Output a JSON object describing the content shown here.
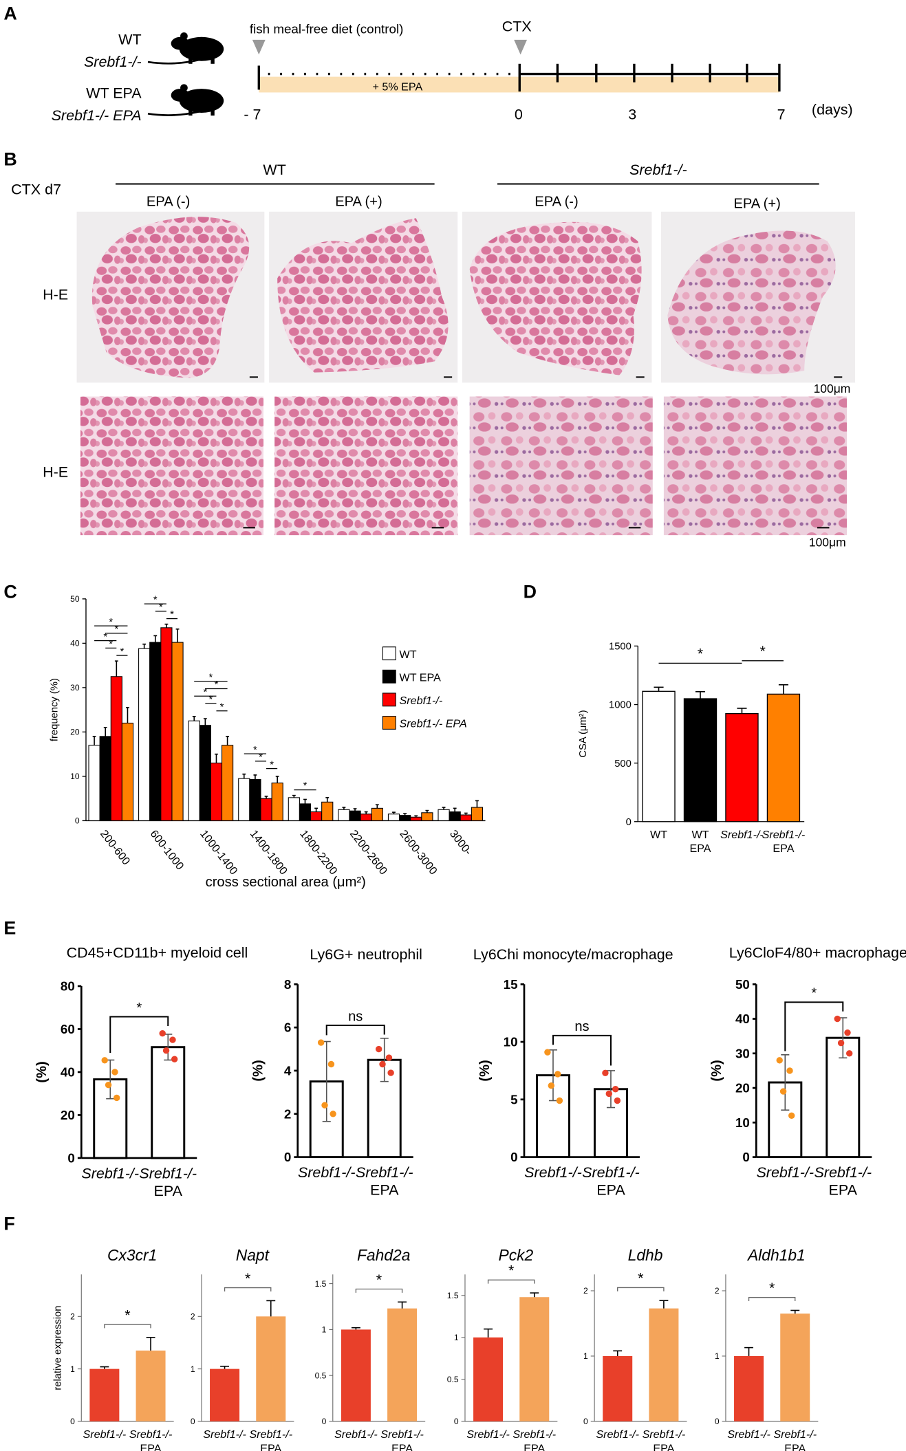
{
  "panel_labels": [
    "A",
    "B",
    "C",
    "D",
    "E",
    "F"
  ],
  "panel_a": {
    "groups": [
      "WT",
      "Srebf1-/-",
      "WT EPA",
      "Srebf1-/- EPA"
    ],
    "diet": "fish meal-free diet (control)",
    "injection": "CTX",
    "supplement": "+ 5% EPA",
    "days": [
      "- 7",
      "0",
      "3",
      "7"
    ],
    "unit": "(days)"
  },
  "panel_b": {
    "timepoint": "CTX d7",
    "genotypes": [
      "WT",
      "Srebf1-/-"
    ],
    "treatments": [
      "EPA (-)",
      "EPA (+)",
      "EPA (-)",
      "EPA (+)"
    ],
    "stain": [
      "H-E",
      "H-E"
    ],
    "scale_bars": [
      "100μm",
      "100μm"
    ]
  },
  "chart_data": [
    {
      "type": "bar",
      "ylabel": "frequency (%)",
      "xlabel": "cross sectional area (μm²)",
      "categories": [
        "200-600",
        "600-1000",
        "1000-1400",
        "1400-1800",
        "1800-2200",
        "2200-2600",
        "2600-3000",
        "3000-"
      ],
      "series": [
        {
          "name": "WT",
          "color": "#ffffff",
          "values": [
            17,
            38.8,
            22.5,
            9.5,
            5.2,
            2.5,
            1.5,
            2.5
          ],
          "errors": [
            2,
            1,
            1,
            1,
            0.5,
            0.5,
            0.4,
            0.5
          ]
        },
        {
          "name": "WT EPA",
          "color": "#000000",
          "values": [
            19,
            40.2,
            21.5,
            9.3,
            3.8,
            2.2,
            1.2,
            2.0
          ],
          "errors": [
            2,
            1.5,
            1.5,
            1,
            1,
            0.5,
            0.4,
            0.8
          ]
        },
        {
          "name": "Srebf1-/-",
          "color": "#ff0000",
          "values": [
            32.5,
            43.5,
            13,
            5,
            2,
            1.5,
            0.8,
            1.3
          ],
          "errors": [
            3.5,
            0.8,
            2,
            0.5,
            0.8,
            0.5,
            0.3,
            0.4
          ]
        },
        {
          "name": "Srebf1-/- EPA",
          "color": "#ff8000",
          "values": [
            22,
            40.2,
            17,
            8.5,
            4.2,
            2.8,
            1.8,
            3.0
          ],
          "errors": [
            3.5,
            3,
            2,
            1.5,
            1,
            0.8,
            0.5,
            1.5
          ]
        }
      ],
      "ylim": [
        0,
        50
      ],
      "yticks": [
        0,
        10,
        20,
        30,
        40,
        50
      ],
      "legend": "upper right",
      "significance": [
        {
          "category": 0,
          "pair": [
            0,
            3
          ],
          "label": "*"
        },
        {
          "category": 0,
          "pair": [
            1,
            3
          ],
          "label": "*"
        },
        {
          "category": 0,
          "pair": [
            0,
            2
          ],
          "label": "*"
        },
        {
          "category": 0,
          "pair": [
            1,
            2
          ],
          "label": "*"
        },
        {
          "category": 0,
          "pair": [
            2,
            3
          ],
          "label": "*"
        },
        {
          "category": 1,
          "pair": [
            0,
            2
          ],
          "label": "*"
        },
        {
          "category": 1,
          "pair": [
            1,
            2
          ],
          "label": "*"
        },
        {
          "category": 1,
          "pair": [
            2,
            3
          ],
          "label": "*"
        },
        {
          "category": 2,
          "pair": [
            0,
            3
          ],
          "label": "*"
        },
        {
          "category": 2,
          "pair": [
            1,
            3
          ],
          "label": "*"
        },
        {
          "category": 2,
          "pair": [
            0,
            2
          ],
          "label": "*"
        },
        {
          "category": 2,
          "pair": [
            1,
            2
          ],
          "label": "*"
        },
        {
          "category": 2,
          "pair": [
            2,
            3
          ],
          "label": "*"
        },
        {
          "category": 3,
          "pair": [
            0,
            2
          ],
          "label": "*"
        },
        {
          "category": 3,
          "pair": [
            1,
            2
          ],
          "label": "*"
        },
        {
          "category": 3,
          "pair": [
            2,
            3
          ],
          "label": "*"
        },
        {
          "category": 4,
          "pair": [
            0,
            2
          ],
          "label": "*"
        }
      ]
    },
    {
      "type": "bar",
      "ylabel": "CSA (μm²)",
      "categories": [
        [
          "WT"
        ],
        [
          "WT",
          "EPA"
        ],
        [
          "Srebf1-/-"
        ],
        [
          "Srebf1-/-",
          "EPA"
        ]
      ],
      "values": [
        1113,
        1050,
        923,
        1089
      ],
      "errors": [
        35,
        60,
        45,
        80
      ],
      "colors": [
        "#ffffff",
        "#000000",
        "#ff0000",
        "#ff8000"
      ],
      "ylim": [
        0,
        1500
      ],
      "yticks": [
        0,
        500,
        1000,
        1500
      ],
      "significance": [
        {
          "pair": [
            0,
            2
          ],
          "label": "*"
        },
        {
          "pair": [
            2,
            3
          ],
          "label": "*"
        }
      ]
    },
    {
      "type": "bar",
      "title": "CD45+CD11b+ myeloid cell",
      "ylabel": "(%)",
      "categories": [
        [
          "Srebf1-/-"
        ],
        [
          "Srebf1-/-",
          "EPA"
        ]
      ],
      "values": [
        36.6,
        51.6
      ],
      "errors": [
        9,
        6
      ],
      "points": [
        [
          45.5,
          40,
          34,
          28
        ],
        [
          58,
          55,
          50,
          46
        ]
      ],
      "color": "#ffffff",
      "point_colors": [
        "#f7941d",
        "#e8402a"
      ],
      "ylim": [
        0,
        80
      ],
      "yticks": [
        0,
        20,
        40,
        60,
        80
      ],
      "significance": [
        {
          "pair": [
            0,
            1
          ],
          "label": "*"
        }
      ]
    },
    {
      "type": "bar",
      "title": "Ly6G+ neutrophil",
      "ylabel": "(%)",
      "categories": [
        [
          "Srebf1-/-"
        ],
        [
          "Srebf1-/-",
          "EPA"
        ]
      ],
      "values": [
        3.5,
        4.5
      ],
      "errors": [
        1.85,
        1.0
      ],
      "points": [
        [
          5.3,
          4.3,
          2.4,
          2.0
        ],
        [
          5.0,
          4.6,
          4.3,
          3.9
        ]
      ],
      "color": "#ffffff",
      "point_colors": [
        "#f7941d",
        "#e8402a"
      ],
      "ylim": [
        0,
        8
      ],
      "yticks": [
        0,
        2,
        4,
        6,
        8
      ],
      "significance": [
        {
          "pair": [
            0,
            1
          ],
          "label": "ns"
        }
      ]
    },
    {
      "type": "bar",
      "title": "Ly6Chi monocyte/macrophage",
      "ylabel": "(%)",
      "categories": [
        [
          "Srebf1-/-"
        ],
        [
          "Srebf1-/-",
          "EPA"
        ]
      ],
      "values": [
        7.1,
        5.9
      ],
      "errors": [
        2.2,
        1.6
      ],
      "points": [
        [
          9.1,
          7.2,
          6.2,
          4.9
        ],
        [
          7.3,
          5.9,
          5.5,
          4.9
        ]
      ],
      "color": "#ffffff",
      "point_colors": [
        "#f7941d",
        "#e8402a"
      ],
      "ylim": [
        0,
        15
      ],
      "yticks": [
        0,
        5,
        10,
        15
      ],
      "significance": [
        {
          "pair": [
            0,
            1
          ],
          "label": "ns"
        }
      ]
    },
    {
      "type": "bar",
      "title": "Ly6CloF4/80+ macrophage",
      "ylabel": "(%)",
      "categories": [
        [
          "Srebf1-/-"
        ],
        [
          "Srebf1-/-",
          "EPA"
        ]
      ],
      "values": [
        21.6,
        34.5
      ],
      "errors": [
        8,
        5.8
      ],
      "points": [
        [
          28,
          25,
          19,
          12
        ],
        [
          40,
          36,
          33,
          30
        ]
      ],
      "color": "#ffffff",
      "point_colors": [
        "#f7941d",
        "#e8402a"
      ],
      "ylim": [
        0,
        50
      ],
      "yticks": [
        0,
        10,
        20,
        30,
        40,
        50
      ],
      "significance": [
        {
          "pair": [
            0,
            1
          ],
          "label": "*"
        }
      ]
    },
    {
      "type": "bar",
      "title": "Cx3cr1",
      "ylabel": "relative expression",
      "categories": [
        [
          "Srebf1-/-"
        ],
        [
          "Srebf1-/-",
          "EPA"
        ]
      ],
      "values": [
        1.0,
        1.35
      ],
      "errors": [
        0.04,
        0.25
      ],
      "colors": [
        "#e8402a",
        "#f4a45a"
      ],
      "ylim": [
        0,
        2.8
      ],
      "yticks": [
        0,
        1,
        2
      ],
      "significance": [
        {
          "pair": [
            0,
            1
          ],
          "label": "*"
        }
      ]
    },
    {
      "type": "bar",
      "title": "Napt",
      "categories": [
        [
          "Srebf1-/-"
        ],
        [
          "Srebf1-/-",
          "EPA"
        ]
      ],
      "values": [
        1.0,
        2.0
      ],
      "errors": [
        0.05,
        0.3
      ],
      "colors": [
        "#e8402a",
        "#f4a45a"
      ],
      "ylim": [
        0,
        2.8
      ],
      "yticks": [
        0,
        1,
        2
      ],
      "significance": [
        {
          "pair": [
            0,
            1
          ],
          "label": "*"
        }
      ]
    },
    {
      "type": "bar",
      "title": "Fahd2a",
      "categories": [
        [
          "Srebf1-/-"
        ],
        [
          "Srebf1-/-",
          "EPA"
        ]
      ],
      "values": [
        1.0,
        1.23
      ],
      "errors": [
        0.02,
        0.07
      ],
      "colors": [
        "#e8402a",
        "#f4a45a"
      ],
      "ylim": [
        0,
        1.6
      ],
      "yticks": [
        0,
        0.5,
        1,
        1.5
      ],
      "significance": [
        {
          "pair": [
            0,
            1
          ],
          "label": "*"
        }
      ]
    },
    {
      "type": "bar",
      "title": "Pck2",
      "categories": [
        [
          "Srebf1-/-"
        ],
        [
          "Srebf1-/-",
          "EPA"
        ]
      ],
      "values": [
        1.0,
        1.48
      ],
      "errors": [
        0.1,
        0.05
      ],
      "colors": [
        "#e8402a",
        "#f4a45a"
      ],
      "ylim": [
        0,
        1.75
      ],
      "yticks": [
        0,
        0.5,
        1,
        1.5
      ],
      "significance": [
        {
          "pair": [
            0,
            1
          ],
          "label": "*"
        }
      ]
    },
    {
      "type": "bar",
      "title": "Ldhb",
      "categories": [
        [
          "Srebf1-/-"
        ],
        [
          "Srebf1-/-",
          "EPA"
        ]
      ],
      "values": [
        1.0,
        1.73
      ],
      "errors": [
        0.08,
        0.12
      ],
      "colors": [
        "#e8402a",
        "#f4a45a"
      ],
      "ylim": [
        0,
        2.25
      ],
      "yticks": [
        0,
        1,
        2
      ],
      "significance": [
        {
          "pair": [
            0,
            1
          ],
          "label": "*"
        }
      ]
    },
    {
      "type": "bar",
      "title": "Aldh1b1",
      "categories": [
        [
          "Srebf1-/-"
        ],
        [
          "Srebf1-/-",
          "EPA"
        ]
      ],
      "values": [
        1.0,
        1.65
      ],
      "errors": [
        0.13,
        0.05
      ],
      "colors": [
        "#e8402a",
        "#f4a45a"
      ],
      "ylim": [
        0,
        2.25
      ],
      "yticks": [
        0,
        1,
        2
      ],
      "significance": [
        {
          "pair": [
            0,
            1
          ],
          "label": "*"
        }
      ]
    }
  ]
}
